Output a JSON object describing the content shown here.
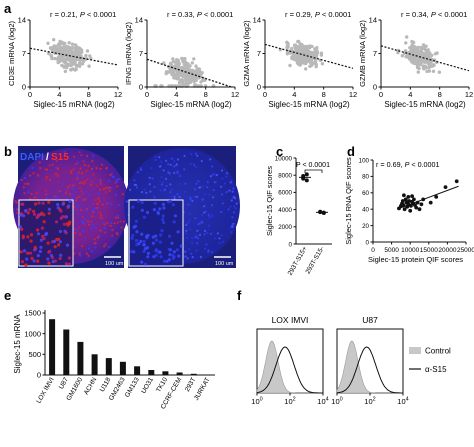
{
  "panel_labels": {
    "a": "a",
    "b": "b",
    "c": "c",
    "d": "d",
    "e": "e",
    "f": "f"
  },
  "colors": {
    "axis": "#111111",
    "scatter_grey": "#b8b8b8",
    "dapi_blue": "#1d2bd8",
    "s15_red": "#e8211e",
    "micro_bg": "#1b1f7a",
    "control_fill": "#c8c8c8"
  },
  "microscopy": {
    "legend_dapi": "DAPI",
    "legend_sep": "/",
    "legend_s15": "S15",
    "scale_left": "100 um",
    "scale_right": "100 um"
  },
  "chart_data": [
    {
      "id": "a1",
      "type": "scatter",
      "xlabel": "Siglec-15 mRNA (log2)",
      "ylabel": "CD3E mRNA (log2)",
      "xlim": [
        0,
        12
      ],
      "ylim": [
        0,
        14
      ],
      "xticks": [
        0,
        4,
        8,
        12
      ],
      "yticks": [
        0,
        7,
        14
      ],
      "annotation": {
        "r": "r = 0.21, ",
        "p": "P",
        "rest": " < 0.0001"
      },
      "trend": [
        [
          0,
          8.1
        ],
        [
          12,
          4.6
        ]
      ]
    },
    {
      "id": "a2",
      "type": "scatter",
      "xlabel": "Siglec-15 mRNA (log2)",
      "ylabel": "IFNG mRNA (log2)",
      "xlim": [
        0,
        12
      ],
      "ylim": [
        0,
        14
      ],
      "xticks": [
        0,
        4,
        8,
        12
      ],
      "yticks": [
        0,
        7,
        14
      ],
      "annotation": {
        "r": "r = 0.33, ",
        "p": "P",
        "rest": " < 0.0001"
      },
      "trend": [
        [
          0,
          5.8
        ],
        [
          11.5,
          0
        ]
      ]
    },
    {
      "id": "a3",
      "type": "scatter",
      "xlabel": "Siglec-15 mRNA (log2)",
      "ylabel": "GZMA mRNA (log2)",
      "xlim": [
        0,
        12
      ],
      "ylim": [
        0,
        14
      ],
      "xticks": [
        0,
        4,
        8,
        12
      ],
      "yticks": [
        0,
        7,
        14
      ],
      "annotation": {
        "r": "r = 0.29, ",
        "p": "P",
        "rest": " < 0.0001"
      },
      "trend": [
        [
          0,
          8.9
        ],
        [
          12,
          3.9
        ]
      ]
    },
    {
      "id": "a4",
      "type": "scatter",
      "xlabel": "Siglec-15 mRNA (log2)",
      "ylabel": "GZMB mRNA (log2)",
      "xlim": [
        0,
        12
      ],
      "ylim": [
        0,
        14
      ],
      "xticks": [
        0,
        4,
        8,
        12
      ],
      "yticks": [
        0,
        7,
        14
      ],
      "annotation": {
        "r": "r = 0.34, ",
        "p": "P",
        "rest": " < 0.0001"
      },
      "trend": [
        [
          0,
          8.6
        ],
        [
          12,
          3.4
        ]
      ]
    },
    {
      "id": "c",
      "type": "scatter",
      "ylabel": "Siglec-15 QIF scores",
      "categories": [
        "293T-S15+",
        "293T-S15-"
      ],
      "ylim": [
        0,
        10000
      ],
      "yticks": [
        0,
        2000,
        4000,
        6000,
        8000,
        10000
      ],
      "values": [
        [
          7700,
          8100,
          7600,
          7400,
          7900
        ],
        [
          3700,
          3600,
          3750,
          3650
        ]
      ],
      "means": [
        7750,
        3680
      ],
      "annotation": "P < 0.0001"
    },
    {
      "id": "d",
      "type": "scatter",
      "xlabel": "Siglec-15 protein QIF scores",
      "ylabel": "Siglec-15 RNA QIF scores",
      "xlim": [
        0,
        25000
      ],
      "ylim": [
        0,
        100
      ],
      "xticks": [
        0,
        5000,
        10000,
        15000,
        20000,
        25000
      ],
      "yticks": [
        0,
        20,
        40,
        60,
        80,
        100
      ],
      "annotation": {
        "r": "r = 0.69, ",
        "p": "P",
        "rest": " < 0.0001"
      },
      "points": [
        [
          7000,
          41
        ],
        [
          7500,
          44
        ],
        [
          7800,
          47
        ],
        [
          8000,
          50
        ],
        [
          8200,
          45
        ],
        [
          8500,
          40
        ],
        [
          8800,
          52
        ],
        [
          9000,
          48
        ],
        [
          9200,
          43
        ],
        [
          9500,
          46
        ],
        [
          9700,
          50
        ],
        [
          10000,
          38
        ],
        [
          10200,
          44
        ],
        [
          10500,
          49
        ],
        [
          10800,
          47
        ],
        [
          11000,
          52
        ],
        [
          11300,
          45
        ],
        [
          11600,
          42
        ],
        [
          12000,
          48
        ],
        [
          12500,
          40
        ],
        [
          13000,
          46
        ],
        [
          13500,
          52
        ],
        [
          9500,
          55
        ],
        [
          10500,
          56
        ],
        [
          17000,
          55
        ],
        [
          19500,
          67
        ],
        [
          22500,
          74
        ],
        [
          15500,
          48
        ],
        [
          8300,
          57
        ]
      ],
      "trend": [
        [
          6500,
          40
        ],
        [
          23000,
          68
        ]
      ]
    },
    {
      "id": "e",
      "type": "bar",
      "ylabel": "Siglec-15 mRNA",
      "categories": [
        "LOX IMVI",
        "U87",
        "GM1600",
        "ACHN",
        "U118",
        "GM2463",
        "GM133",
        "UO31",
        "TK10",
        "CCRF-CEM",
        "293T",
        "JURKAT"
      ],
      "values": [
        1350,
        1100,
        800,
        500,
        410,
        320,
        210,
        120,
        90,
        60,
        30,
        10
      ],
      "ylim": [
        0,
        1500
      ],
      "yticks": [
        0,
        500,
        1000,
        1500
      ]
    },
    {
      "id": "f1",
      "type": "area",
      "title": "LOX IMVI",
      "xticks": [
        {
          "base": "10",
          "exp": "0"
        },
        {
          "base": "10",
          "exp": "2"
        },
        {
          "base": "10",
          "exp": "4"
        }
      ],
      "series": [
        {
          "name": "Control",
          "peak": 0.9
        },
        {
          "name": "α-S15",
          "peak": 1.7
        }
      ]
    },
    {
      "id": "f2",
      "type": "area",
      "title": "U87",
      "xticks": [
        {
          "base": "10",
          "exp": "0"
        },
        {
          "base": "10",
          "exp": "2"
        },
        {
          "base": "10",
          "exp": "4"
        }
      ],
      "series": [
        {
          "name": "Control",
          "peak": 0.9
        },
        {
          "name": "α-S15",
          "peak": 1.8
        }
      ],
      "legend": [
        "Control",
        "α-S15"
      ]
    }
  ]
}
